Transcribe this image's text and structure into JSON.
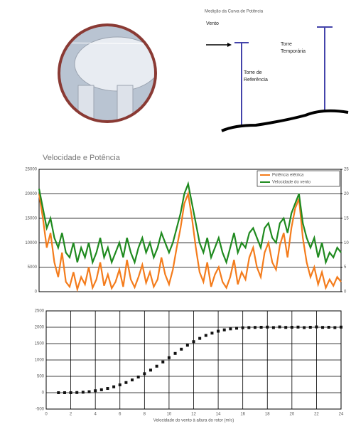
{
  "diagram": {
    "title": "Medição da Curva de Potência",
    "wind": "Vento",
    "temporary_tower": [
      "Torre",
      "Temporária"
    ],
    "reference_tower": [
      "Torre de",
      "Referência"
    ]
  },
  "chart_data": [
    {
      "type": "line",
      "title": "Velocidade e Potência",
      "series": [
        {
          "name": "Potência elétrica",
          "color": "#f47c1c",
          "values": [
            20000,
            15000,
            9000,
            12000,
            6000,
            3000,
            8000,
            2000,
            1000,
            4000,
            500,
            3000,
            1500,
            5000,
            800,
            2500,
            6000,
            1200,
            3500,
            700,
            2000,
            4500,
            1000,
            6500,
            2500,
            900,
            3000,
            5500,
            1800,
            4000,
            1000,
            2500,
            7000,
            3500,
            1500,
            4500,
            9000,
            13000,
            18000,
            20000,
            15000,
            9000,
            4000,
            2000,
            6000,
            1000,
            3500,
            5000,
            2000,
            800,
            3000,
            6500,
            1500,
            4000,
            2500,
            7000,
            9000,
            5000,
            3000,
            8000,
            10000,
            6000,
            4500,
            9500,
            12000,
            7000,
            13000,
            17000,
            19000,
            11000,
            6000,
            3000,
            5000,
            1500,
            4000,
            800,
            2500,
            1200,
            3000,
            2000
          ]
        },
        {
          "name": "Velocidade do vento",
          "color": "#1f8a1f",
          "axis": "y2",
          "values": [
            21,
            17,
            13,
            15,
            11,
            9,
            12,
            8,
            7,
            10,
            6,
            9,
            7,
            10,
            6,
            8,
            11,
            7,
            9,
            6,
            8,
            10,
            7,
            11,
            8,
            6,
            9,
            11,
            8,
            10,
            7,
            9,
            12,
            10,
            8,
            10,
            13,
            16,
            20,
            22,
            18,
            14,
            10,
            8,
            11,
            7,
            9,
            11,
            8,
            6,
            9,
            12,
            8,
            10,
            9,
            12,
            13,
            11,
            9,
            13,
            14,
            11,
            10,
            14,
            15,
            12,
            16,
            18,
            20,
            14,
            11,
            9,
            11,
            7,
            10,
            6,
            8,
            7,
            9,
            8
          ]
        }
      ],
      "ylim": [
        0,
        25000
      ],
      "yticks": [
        0,
        5000,
        10000,
        15000,
        20000,
        25000
      ],
      "y2lim": [
        0,
        25
      ],
      "y2ticks": [
        0,
        5,
        10,
        15,
        20,
        25
      ],
      "grid": true,
      "legend": "top-right"
    },
    {
      "type": "scatter",
      "xlabel": "Velocidade do vento à altura do rotor (m/s)",
      "x": [
        1,
        1.5,
        2,
        2.5,
        3,
        3.5,
        4,
        4.5,
        5,
        5.5,
        6,
        6.5,
        7,
        7.5,
        8,
        8.5,
        9,
        9.5,
        10,
        10.5,
        11,
        11.5,
        12,
        12.5,
        13,
        13.5,
        14,
        14.5,
        15,
        15.5,
        16,
        16.5,
        17,
        17.5,
        18,
        18.5,
        19,
        19.5,
        20,
        20.5,
        21,
        21.5,
        22,
        22.5,
        23,
        23.5,
        24
      ],
      "values": [
        0,
        0,
        0,
        5,
        15,
        30,
        60,
        90,
        130,
        180,
        240,
        310,
        390,
        480,
        580,
        690,
        810,
        940,
        1070,
        1200,
        1330,
        1450,
        1560,
        1660,
        1750,
        1820,
        1880,
        1920,
        1950,
        1970,
        1985,
        1990,
        1995,
        2000,
        2005,
        1990,
        2010,
        1995,
        2000,
        2005,
        1990,
        2000,
        2010,
        1995,
        2000,
        1990,
        2005
      ],
      "color": "#111111",
      "xlim": [
        0,
        24
      ],
      "xticks": [
        0,
        2,
        4,
        6,
        8,
        10,
        12,
        14,
        16,
        18,
        20,
        22,
        24
      ],
      "ylim": [
        -500,
        2500
      ],
      "yticks": [
        -500,
        0,
        500,
        1000,
        1500,
        2000,
        2500
      ],
      "grid": true
    }
  ]
}
